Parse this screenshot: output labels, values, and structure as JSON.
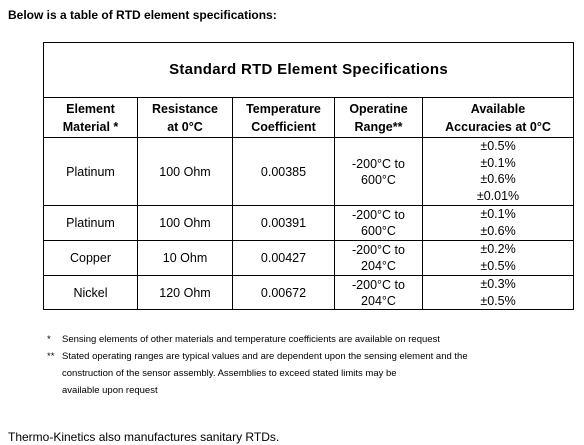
{
  "intro": "Below is a table of RTD element specifications:",
  "table": {
    "title": "Standard RTD Element Specifications",
    "columns": [
      [
        "Element",
        "Material *"
      ],
      [
        "Resistance",
        "at 0°C"
      ],
      [
        "Temperature",
        "Coefficient"
      ],
      [
        "Operatine",
        "Range**"
      ],
      [
        "Available",
        "Accuracies at 0°C"
      ]
    ],
    "rows": [
      [
        [
          "Platinum"
        ],
        [
          "100 Ohm"
        ],
        [
          "0.00385"
        ],
        [
          "-200°C to",
          "600°C"
        ],
        [
          "±0.5%",
          "±0.1%",
          "±0.6%",
          "±0.01%"
        ]
      ],
      [
        [
          "Platinum"
        ],
        [
          "100 Ohm"
        ],
        [
          "0.00391"
        ],
        [
          "-200°C to",
          "600°C"
        ],
        [
          "±0.1%",
          "±0.6%"
        ]
      ],
      [
        [
          "Copper"
        ],
        [
          "10 Ohm"
        ],
        [
          "0.00427"
        ],
        [
          "-200°C to",
          "204°C"
        ],
        [
          "±0.2%",
          "±0.5%"
        ]
      ],
      [
        [
          "Nickel"
        ],
        [
          "120 Ohm"
        ],
        [
          "0.00672"
        ],
        [
          "-200°C to",
          "204°C"
        ],
        [
          "±0.3%",
          "±0.5%"
        ]
      ]
    ]
  },
  "notes": [
    {
      "mark": "*",
      "lines": [
        "Sensing elements of other materials and temperature coefficients are available on request"
      ]
    },
    {
      "mark": "**",
      "lines": [
        "Stated operating ranges are typical values and are dependent upon the sensing element and the",
        "construction of the sensor assembly.  Assemblies to exceed stated limits may be",
        "available upon request"
      ]
    }
  ],
  "footer": "Thermo-Kinetics also manufactures sanitary RTDs."
}
